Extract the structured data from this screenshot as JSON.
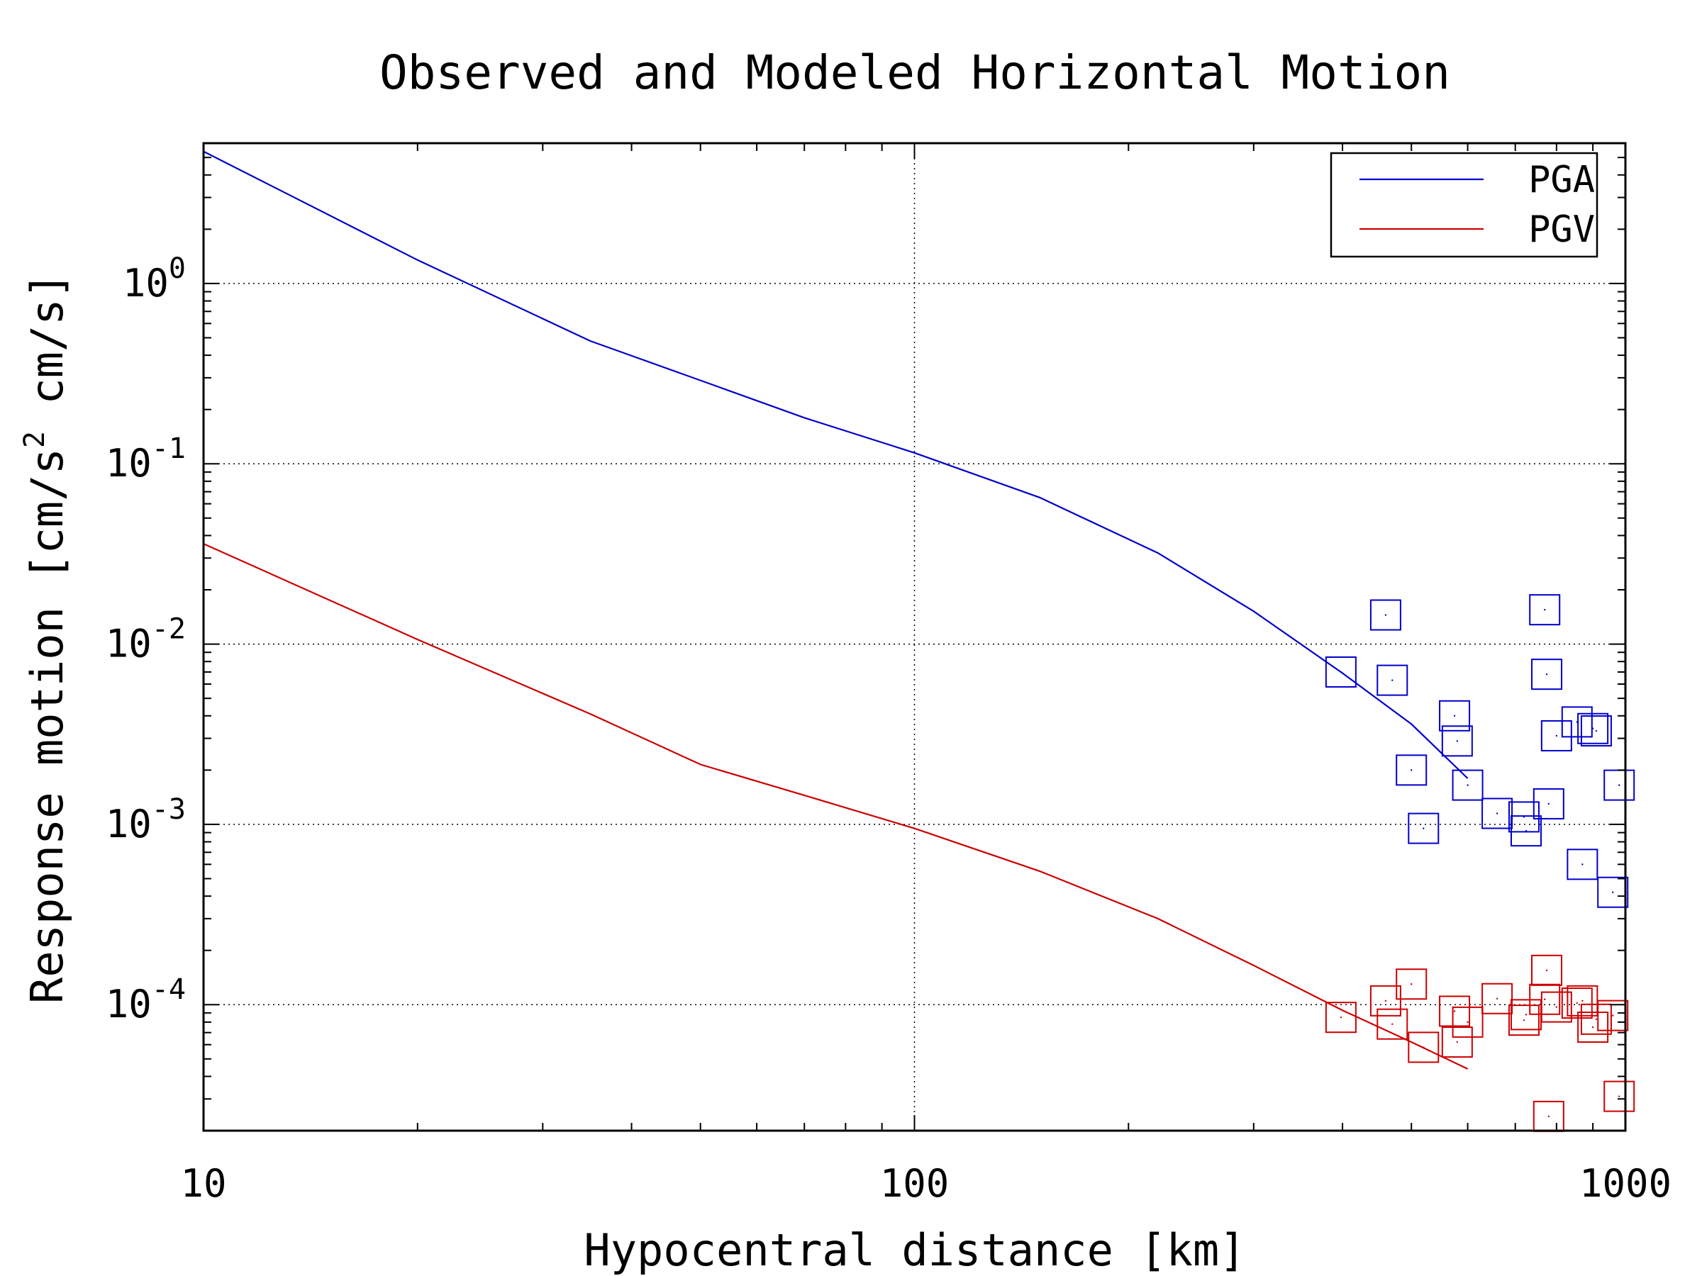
{
  "chart_data": {
    "type": "scatter",
    "title": "Observed and Modeled Horizontal Motion",
    "xlabel": "Hypocentral distance [km]",
    "ylabel": "Response motion  [cm/s² cm/s]",
    "ylabel_parts": {
      "pre": "Response motion  [cm/s",
      "sup": "2",
      "post": "  cm/s]"
    },
    "x_scale": "log",
    "y_scale": "log",
    "xlim": [
      10,
      1000
    ],
    "ylim": [
      2e-05,
      6
    ],
    "grid": true,
    "legend_position": "top-right",
    "x_ticks": [
      {
        "value": 10,
        "label": "10"
      },
      {
        "value": 100,
        "label": "100"
      },
      {
        "value": 1000,
        "label": "1000"
      }
    ],
    "y_ticks": [
      {
        "value": 1,
        "base": "10",
        "exp": "0"
      },
      {
        "value": 0.1,
        "base": "10",
        "exp": "-1"
      },
      {
        "value": 0.01,
        "base": "10",
        "exp": "-2"
      },
      {
        "value": 0.001,
        "base": "10",
        "exp": "-3"
      },
      {
        "value": 0.0001,
        "base": "10",
        "exp": "-4"
      }
    ],
    "series": [
      {
        "name": "PGA",
        "kind": "line",
        "color": "#0000cc",
        "x": [
          10,
          20,
          35,
          50,
          70,
          100,
          150,
          220,
          300,
          400,
          500,
          600
        ],
        "y": [
          5.4,
          1.35,
          0.48,
          0.29,
          0.18,
          0.115,
          0.065,
          0.032,
          0.0152,
          0.0069,
          0.0036,
          0.0018
        ]
      },
      {
        "name": "PGV",
        "kind": "line",
        "color": "#cc0000",
        "x": [
          10,
          20,
          35,
          50,
          70,
          100,
          150,
          220,
          300,
          400,
          500,
          600
        ],
        "y": [
          0.036,
          0.0106,
          0.0041,
          0.00215,
          0.00145,
          0.00095,
          0.00055,
          0.0003,
          0.000165,
          9.3e-05,
          6.2e-05,
          4.4e-05
        ]
      },
      {
        "name": "",
        "kind": "markers",
        "color": "#0000cc",
        "x": [
          398,
          460,
          470,
          500,
          520,
          575,
          580,
          600,
          660,
          720,
          725,
          770,
          775,
          780,
          800,
          855,
          870,
          900,
          910,
          960,
          980
        ],
        "y": [
          0.007,
          0.0145,
          0.0063,
          0.002,
          0.00095,
          0.004,
          0.0029,
          0.00165,
          0.00115,
          0.0011,
          0.00092,
          0.0155,
          0.0068,
          0.0013,
          0.0031,
          0.0037,
          0.0006,
          0.0034,
          0.0033,
          0.00042,
          0.00165
        ]
      },
      {
        "name": "",
        "kind": "markers",
        "color": "#cc0000",
        "x": [
          398,
          460,
          470,
          500,
          520,
          575,
          580,
          600,
          660,
          720,
          725,
          770,
          775,
          780,
          800,
          855,
          870,
          900,
          910,
          960,
          980
        ],
        "y": [
          8.5e-05,
          0.000105,
          7.8e-05,
          0.00013,
          5.8e-05,
          9.2e-05,
          6.2e-05,
          8e-05,
          0.000108,
          8.2e-05,
          8.8e-05,
          0.000107,
          0.000155,
          2.4e-05,
          9.7e-05,
          0.000102,
          0.000105,
          7.5e-05,
          8.3e-05,
          8.7e-05,
          3.1e-05
        ]
      }
    ],
    "legend": [
      {
        "label": "PGA",
        "color": "#0000cc"
      },
      {
        "label": "PGV",
        "color": "#cc0000"
      }
    ]
  }
}
